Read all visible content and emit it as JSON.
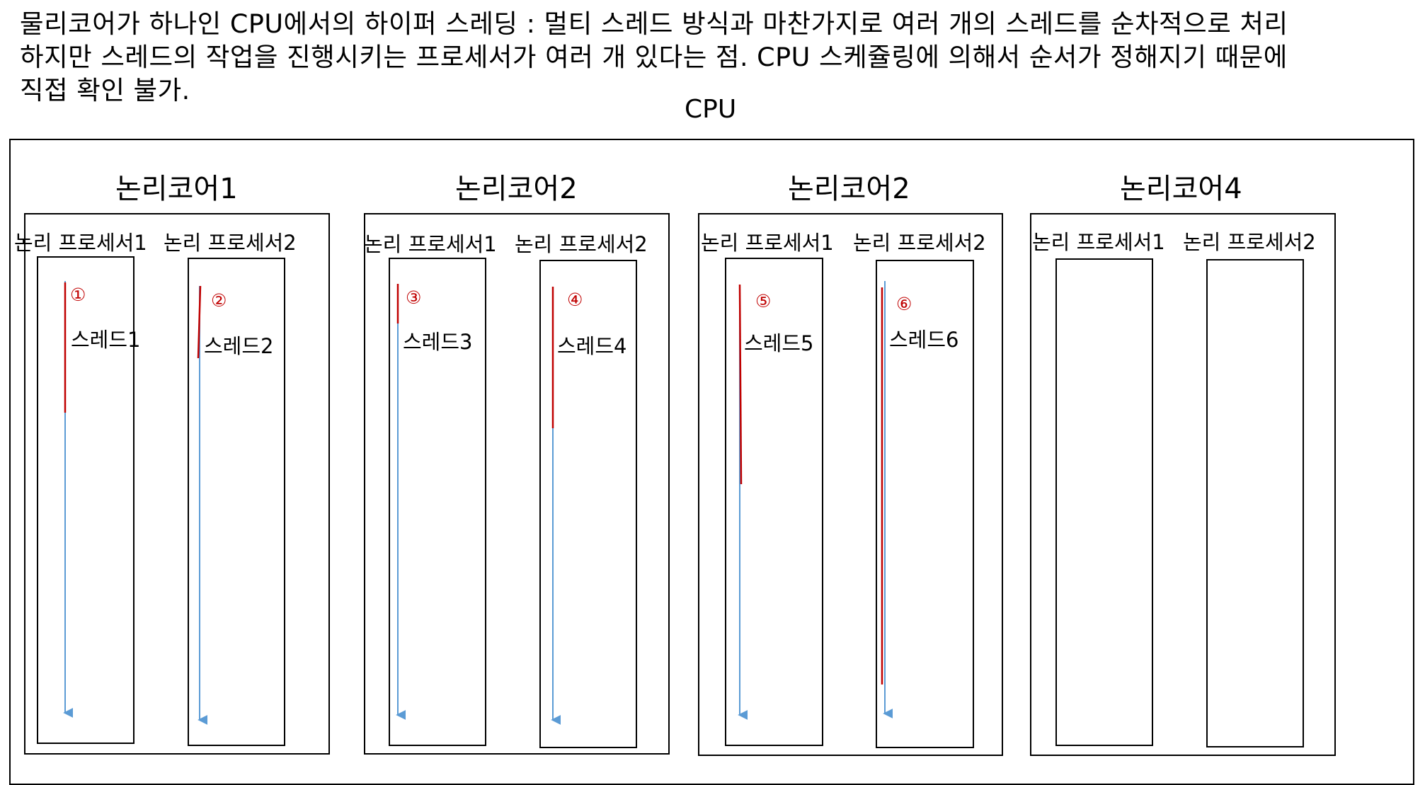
{
  "description": "물리코어가 하나인 CPU에서의 하이퍼 스레딩 : 멀티 스레드 방식과 마찬가지로 여러 개의 스레드를 순차적으로 처리\n하지만 스레드의 작업을 진행시키는 프로세서가 여러 개 있다는 점. CPU 스케쥴링에 의해서 순서가 정해지기 때문에\n직접 확인 불가.",
  "cpu_label": "CPU",
  "colors": {
    "execution": "#c00000",
    "timeline": "#5b9bd5",
    "border": "#000000"
  },
  "cores": [
    {
      "label": "논리코어1",
      "processors": [
        {
          "label": "논리 프로세서1",
          "thread": "스레드1",
          "step": "①"
        },
        {
          "label": "논리 프로세서2",
          "thread": "스레드2",
          "step": "②"
        }
      ]
    },
    {
      "label": "논리코어2",
      "processors": [
        {
          "label": "논리 프로세서1",
          "thread": "스레드3",
          "step": "③"
        },
        {
          "label": "논리 프로세서2",
          "thread": "스레드4",
          "step": "④"
        }
      ]
    },
    {
      "label": "논리코어2",
      "processors": [
        {
          "label": "논리 프로세서1",
          "thread": "스레드5",
          "step": "⑤"
        },
        {
          "label": "논리 프로세서2",
          "thread": "스레드6",
          "step": "⑥"
        }
      ]
    },
    {
      "label": "논리코어4",
      "processors": [
        {
          "label": "논리 프로세서1"
        },
        {
          "label": "논리 프로세서2"
        }
      ]
    }
  ]
}
